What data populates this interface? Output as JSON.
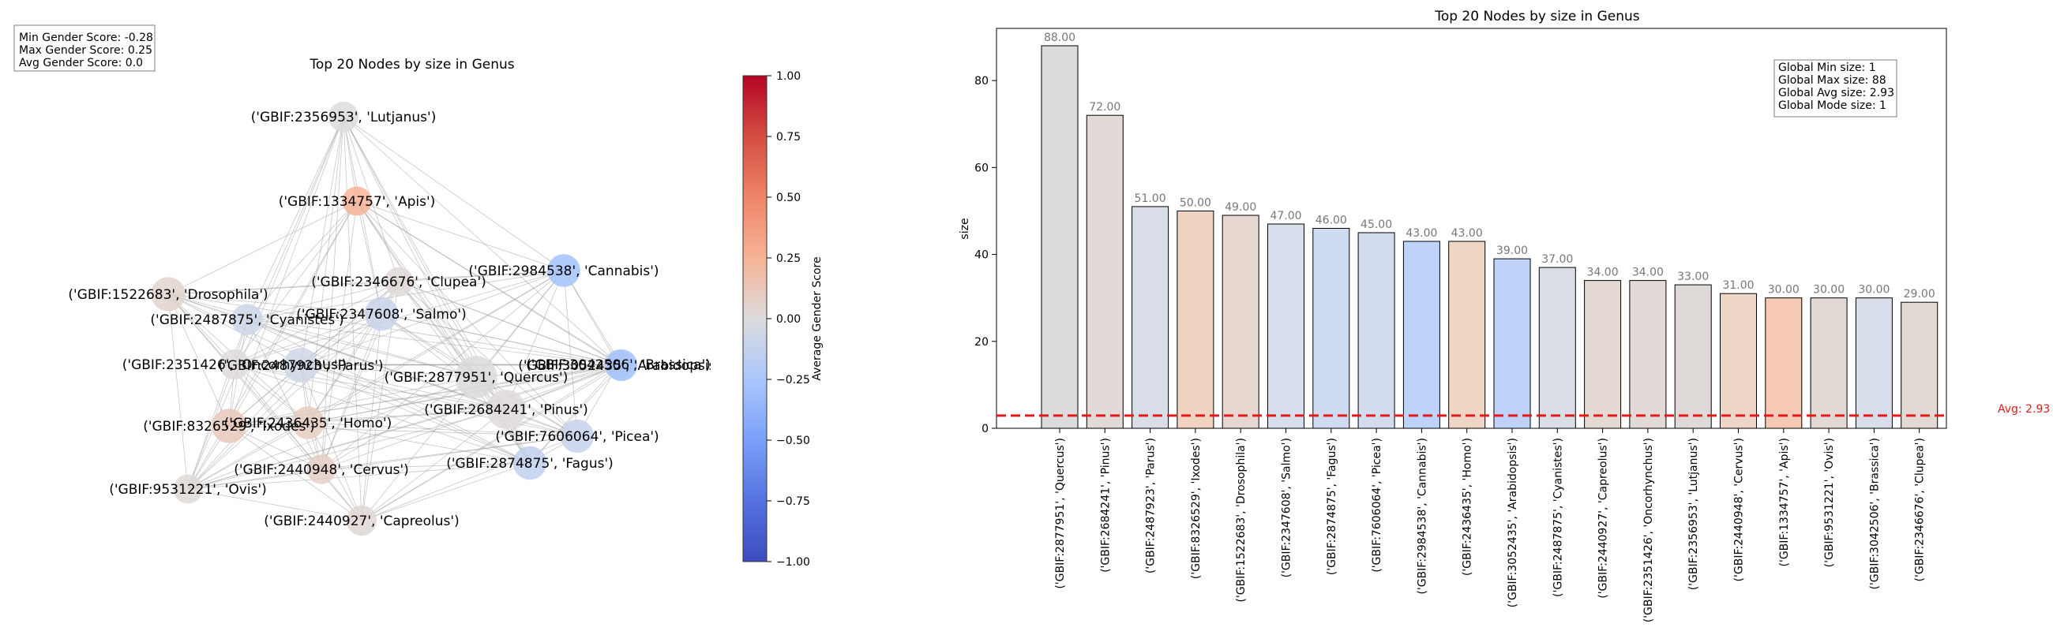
{
  "stats_box": {
    "lines": [
      "Min Gender Score: -0.28",
      "Max Gender Score: 0.25",
      "Avg Gender Score: 0.0"
    ]
  },
  "chart_data": [
    {
      "type": "network",
      "title": "Top 20 Nodes by size in Genus",
      "colorbar": {
        "label": "Average Gender Score",
        "range": [
          -1,
          1
        ],
        "ticks": [
          "1.00",
          "0.75",
          "0.50",
          "0.25",
          "0.00",
          "−0.25",
          "−0.50",
          "−0.75",
          "−1.00"
        ],
        "tick_values": [
          1,
          0.75,
          0.5,
          0.25,
          0,
          -0.25,
          -0.5,
          -0.75,
          -1
        ],
        "colormap": "coolwarm"
      },
      "nodes": [
        {
          "label": "('GBIF:2356953', 'Lutjanus')",
          "size": 33,
          "score": 0.0
        },
        {
          "label": "('GBIF:1334757', 'Apis')",
          "size": 30,
          "score": 0.25
        },
        {
          "label": "('GBIF:2984538', 'Cannabis')",
          "size": 43,
          "score": -0.28
        },
        {
          "label": "('GBIF:3042506', 'Brassica')",
          "size": 30,
          "score": -0.08
        },
        {
          "label": "('GBIF:2346676', 'Clupea')",
          "size": 29,
          "score": 0.02
        },
        {
          "label": "('GBIF:1522683', 'Drosophila')",
          "size": 49,
          "score": 0.05
        },
        {
          "label": "('GBIF:2487875', 'Cyanistes')",
          "size": 37,
          "score": -0.08
        },
        {
          "label": "('GBIF:2347608', 'Salmo')",
          "size": 47,
          "score": -0.1
        },
        {
          "label": "('GBIF:2351426', 'Oncorhynchus')",
          "size": 34,
          "score": 0.01
        },
        {
          "label": "('GBIF:2487923', 'Parus')",
          "size": 51,
          "score": -0.07
        },
        {
          "label": "('GBIF:3052435', 'Arabidopsis')",
          "size": 39,
          "score": -0.28
        },
        {
          "label": "('GBIF:2877951', 'Quercus')",
          "size": 88,
          "score": -0.01
        },
        {
          "label": "('GBIF:8326529', 'Ixodes')",
          "size": 50,
          "score": 0.12
        },
        {
          "label": "('GBIF:2684241', 'Pinus')",
          "size": 72,
          "score": 0.01
        },
        {
          "label": "('GBIF:2436435', 'Homo')",
          "size": 43,
          "score": 0.1
        },
        {
          "label": "('GBIF:7606064', 'Picea')",
          "size": 45,
          "score": -0.12
        },
        {
          "label": "('GBIF:2440948', 'Cervus')",
          "size": 31,
          "score": 0.08
        },
        {
          "label": "('GBIF:2874875', 'Fagus')",
          "size": 46,
          "score": -0.14
        },
        {
          "label": "('GBIF:9531221', 'Ovis')",
          "size": 30,
          "score": 0.02
        },
        {
          "label": "('GBIF:2440927', 'Capreolus')",
          "size": 34,
          "score": 0.03
        }
      ]
    },
    {
      "type": "bar",
      "title": "Top 20 Nodes by size in Genus",
      "ylabel": "size",
      "xlabel": "",
      "ylim": [
        0,
        92
      ],
      "yticks": [
        0,
        20,
        40,
        60,
        80
      ],
      "categories": [
        "('GBIF:2877951', 'Quercus')",
        "('GBIF:2684241', 'Pinus')",
        "('GBIF:2487923', 'Parus')",
        "('GBIF:8326529', 'Ixodes')",
        "('GBIF:1522683', 'Drosophila')",
        "('GBIF:2347608', 'Salmo')",
        "('GBIF:2874875', 'Fagus')",
        "('GBIF:7606064', 'Picea')",
        "('GBIF:2984538', 'Cannabis')",
        "('GBIF:2436435', 'Homo')",
        "('GBIF:3052435', 'Arabidopsis')",
        "('GBIF:2487875', 'Cyanistes')",
        "('GBIF:2440927', 'Capreolus')",
        "('GBIF:2351426', 'Oncorhynchus')",
        "('GBIF:2356953', 'Lutjanus')",
        "('GBIF:2440948', 'Cervus')",
        "('GBIF:1334757', 'Apis')",
        "('GBIF:9531221', 'Ovis')",
        "('GBIF:3042506', 'Brassica')",
        "('GBIF:2346676', 'Clupea')"
      ],
      "values": [
        88,
        72,
        51,
        50,
        49,
        47,
        46,
        45,
        43,
        43,
        39,
        37,
        34,
        34,
        33,
        31,
        30,
        30,
        30,
        29
      ],
      "value_labels": [
        "88.00",
        "72.00",
        "51.00",
        "50.00",
        "49.00",
        "47.00",
        "46.00",
        "45.00",
        "43.00",
        "43.00",
        "39.00",
        "37.00",
        "34.00",
        "34.00",
        "33.00",
        "31.00",
        "30.00",
        "30.00",
        "30.00",
        "29.00"
      ],
      "bar_colors": [
        "#dddcdc",
        "#e2dad6",
        "#d8dde7",
        "#f1d3c2",
        "#e6d8d1",
        "#d6deeb",
        "#cfdbf1",
        "#d3dcee",
        "#bdd3fa",
        "#efd5c4",
        "#bfd2f9",
        "#d8dde6",
        "#e4d9d3",
        "#e1dad6",
        "#dfdad7",
        "#edd5c8",
        "#f5c9b4",
        "#e3d9d4",
        "#d7dee9",
        "#e2d9d4"
      ],
      "average_line": {
        "value": 2.93,
        "label": "Avg: 2.93",
        "color": "#e31a1c"
      },
      "stats_box": [
        "Global Min size: 1",
        "Global Max size: 88",
        "Global Avg size: 2.93",
        "Global Mode size: 1"
      ]
    }
  ]
}
